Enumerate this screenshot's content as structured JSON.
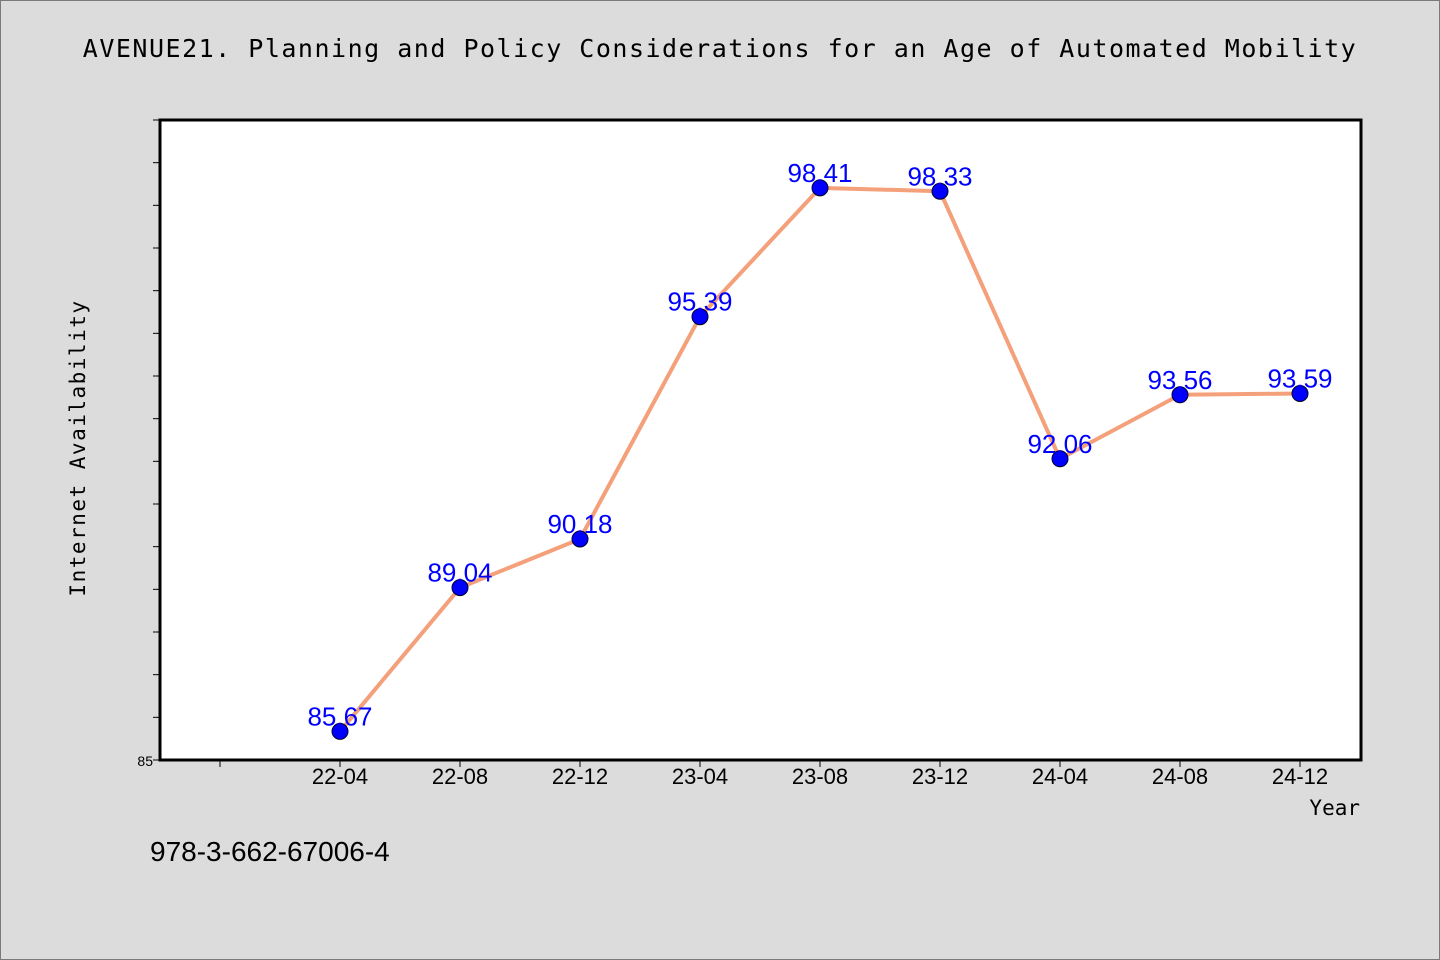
{
  "colors": {
    "background": "#dcdcdc",
    "plot_background": "#ffffff",
    "line": "#f4a07a",
    "marker": "#0000ff",
    "data_label": "#0000ff"
  },
  "footer_text": "978-3-662-67006-4",
  "chart_data": {
    "type": "line",
    "title": "AVENUE21. Planning and Policy Considerations for an Age of Automated Mobility",
    "xlabel": "Year",
    "ylabel": "Internet Availability",
    "categories": [
      "22-04",
      "22-08",
      "22-12",
      "23-04",
      "23-08",
      "23-12",
      "24-04",
      "24-08",
      "24-12"
    ],
    "series": [
      {
        "values": [
          85.67,
          89.04,
          90.18,
          95.39,
          98.41,
          98.33,
          92.06,
          93.56,
          93.59
        ]
      }
    ],
    "y_tick_labels": [
      "85"
    ],
    "ylim": [
      85,
      100
    ],
    "grid": false,
    "legend": false
  }
}
